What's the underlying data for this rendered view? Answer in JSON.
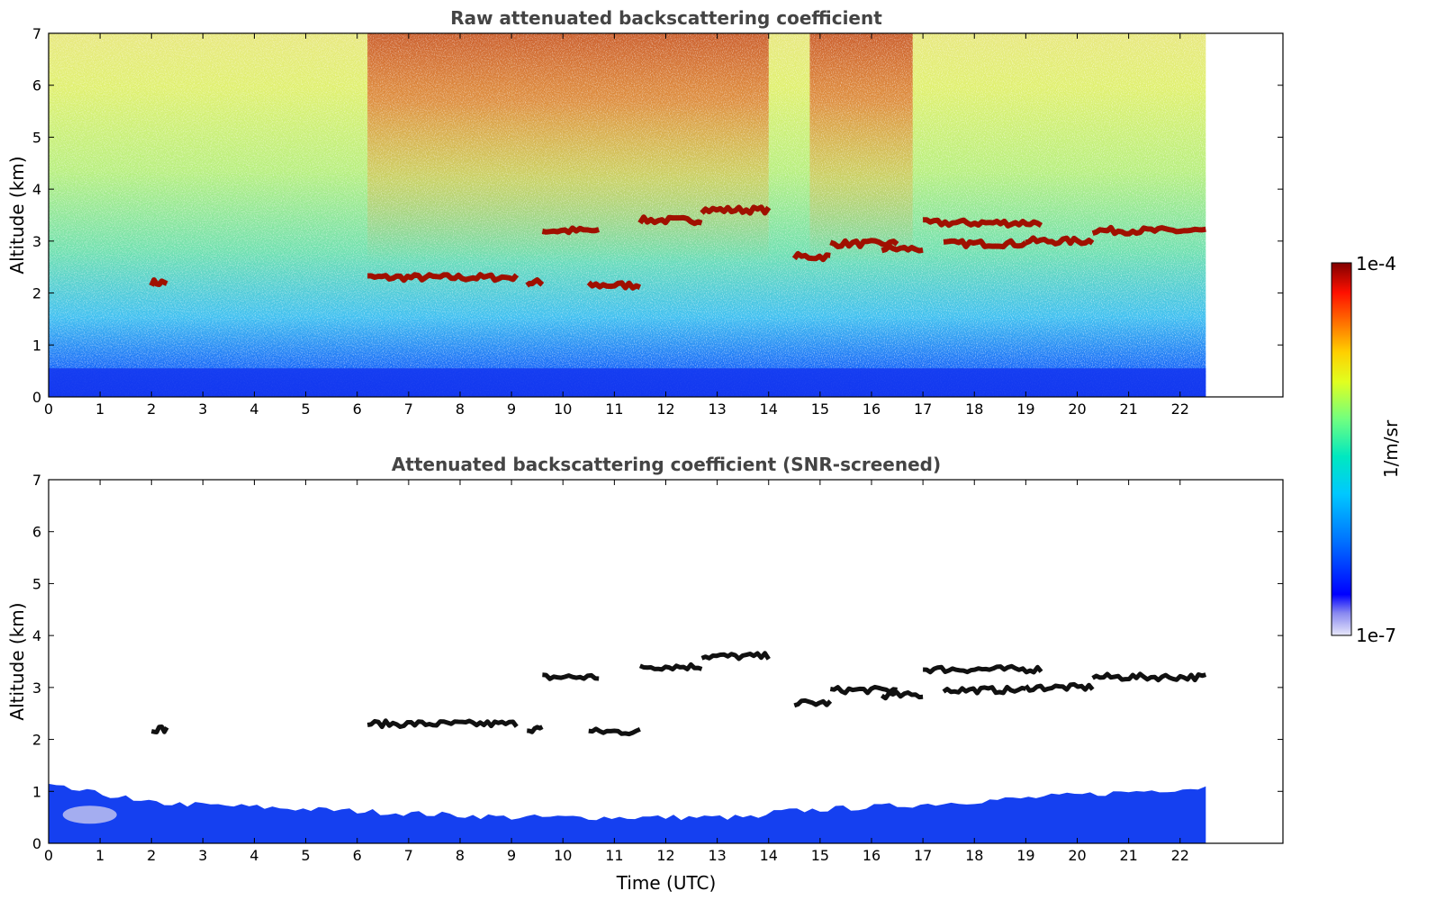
{
  "chart_data": [
    {
      "type": "heatmap",
      "title": "Raw attenuated backscattering coefficient",
      "xlabel": "",
      "ylabel": "Altitude (km)",
      "xlim": [
        0,
        24
      ],
      "ylim": [
        0,
        7
      ],
      "xticks": [
        "0",
        "1",
        "2",
        "3",
        "4",
        "5",
        "6",
        "7",
        "8",
        "9",
        "10",
        "11",
        "12",
        "13",
        "14",
        "15",
        "16",
        "17",
        "18",
        "19",
        "20",
        "21",
        "22"
      ],
      "yticks": [
        "0",
        "1",
        "2",
        "3",
        "4",
        "5",
        "6",
        "7"
      ],
      "data_end_time": 22.5,
      "clouds": [
        {
          "t0": 2.0,
          "t1": 2.3,
          "h": 2.2
        },
        {
          "t0": 6.2,
          "t1": 9.1,
          "h": 2.3
        },
        {
          "t0": 9.3,
          "t1": 9.6,
          "h": 2.2
        },
        {
          "t0": 9.6,
          "t1": 10.7,
          "h": 3.2
        },
        {
          "t0": 10.5,
          "t1": 11.5,
          "h": 2.15
        },
        {
          "t0": 11.5,
          "t1": 12.7,
          "h": 3.4
        },
        {
          "t0": 12.7,
          "t1": 14.0,
          "h": 3.6
        },
        {
          "t0": 14.5,
          "t1": 15.2,
          "h": 2.7
        },
        {
          "t0": 15.2,
          "t1": 16.5,
          "h": 2.95
        },
        {
          "t0": 16.2,
          "t1": 17.0,
          "h": 2.85
        },
        {
          "t0": 17.0,
          "t1": 19.3,
          "h": 3.35
        },
        {
          "t0": 17.4,
          "t1": 19.0,
          "h": 2.95
        },
        {
          "t0": 19.0,
          "t1": 20.3,
          "h": 3.0
        },
        {
          "t0": 20.3,
          "t1": 22.5,
          "h": 3.2
        }
      ]
    },
    {
      "type": "heatmap",
      "title": "Attenuated backscattering coefficient (SNR-screened)",
      "xlabel": "Time (UTC)",
      "ylabel": "Altitude (km)",
      "xlim": [
        0,
        24
      ],
      "ylim": [
        0,
        7
      ],
      "xticks": [
        "0",
        "1",
        "2",
        "3",
        "4",
        "5",
        "6",
        "7",
        "8",
        "9",
        "10",
        "11",
        "12",
        "13",
        "14",
        "15",
        "16",
        "17",
        "18",
        "19",
        "20",
        "21",
        "22"
      ],
      "yticks": [
        "0",
        "1",
        "2",
        "3",
        "4",
        "5",
        "6",
        "7"
      ],
      "data_end_time": 22.5
    }
  ],
  "colorbar": {
    "label": "1/m/sr",
    "max_label": "1e-4",
    "min_label": "1e-7",
    "colormap": [
      "#e0e0f8",
      "#0000ff",
      "#00b0ff",
      "#00e0c0",
      "#80ff60",
      "#ffff00",
      "#ff8000",
      "#ff0000",
      "#800000"
    ]
  },
  "colors": {
    "cloud_raw": "#a01000",
    "cloud_screened": "#111111",
    "boundary_layer": "#1540f0"
  }
}
